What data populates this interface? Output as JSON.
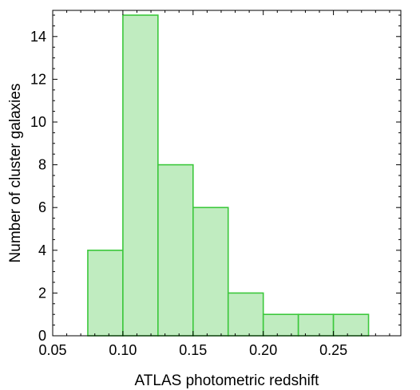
{
  "chart_data": {
    "type": "bar",
    "title": "",
    "xlabel": "ATLAS photometric redshift",
    "ylabel": "Number of cluster galaxies",
    "xlim": [
      0.05,
      0.3
    ],
    "ylim": [
      0,
      15
    ],
    "grid": false,
    "bins": [
      {
        "start": 0.075,
        "end": 0.1,
        "count": 4
      },
      {
        "start": 0.1,
        "end": 0.125,
        "count": 15
      },
      {
        "start": 0.125,
        "end": 0.15,
        "count": 8
      },
      {
        "start": 0.15,
        "end": 0.175,
        "count": 6
      },
      {
        "start": 0.175,
        "end": 0.2,
        "count": 2
      },
      {
        "start": 0.2,
        "end": 0.225,
        "count": 1
      },
      {
        "start": 0.225,
        "end": 0.25,
        "count": 1
      },
      {
        "start": 0.25,
        "end": 0.275,
        "count": 1
      }
    ],
    "x_ticks": [
      "0.05",
      "0.10",
      "0.15",
      "0.20",
      "0.25"
    ],
    "y_ticks": [
      "0",
      "2",
      "4",
      "6",
      "8",
      "10",
      "12",
      "14"
    ],
    "colors": {
      "bar_fill": "#c0ecc0",
      "bar_edge": "#3cc83c"
    }
  }
}
